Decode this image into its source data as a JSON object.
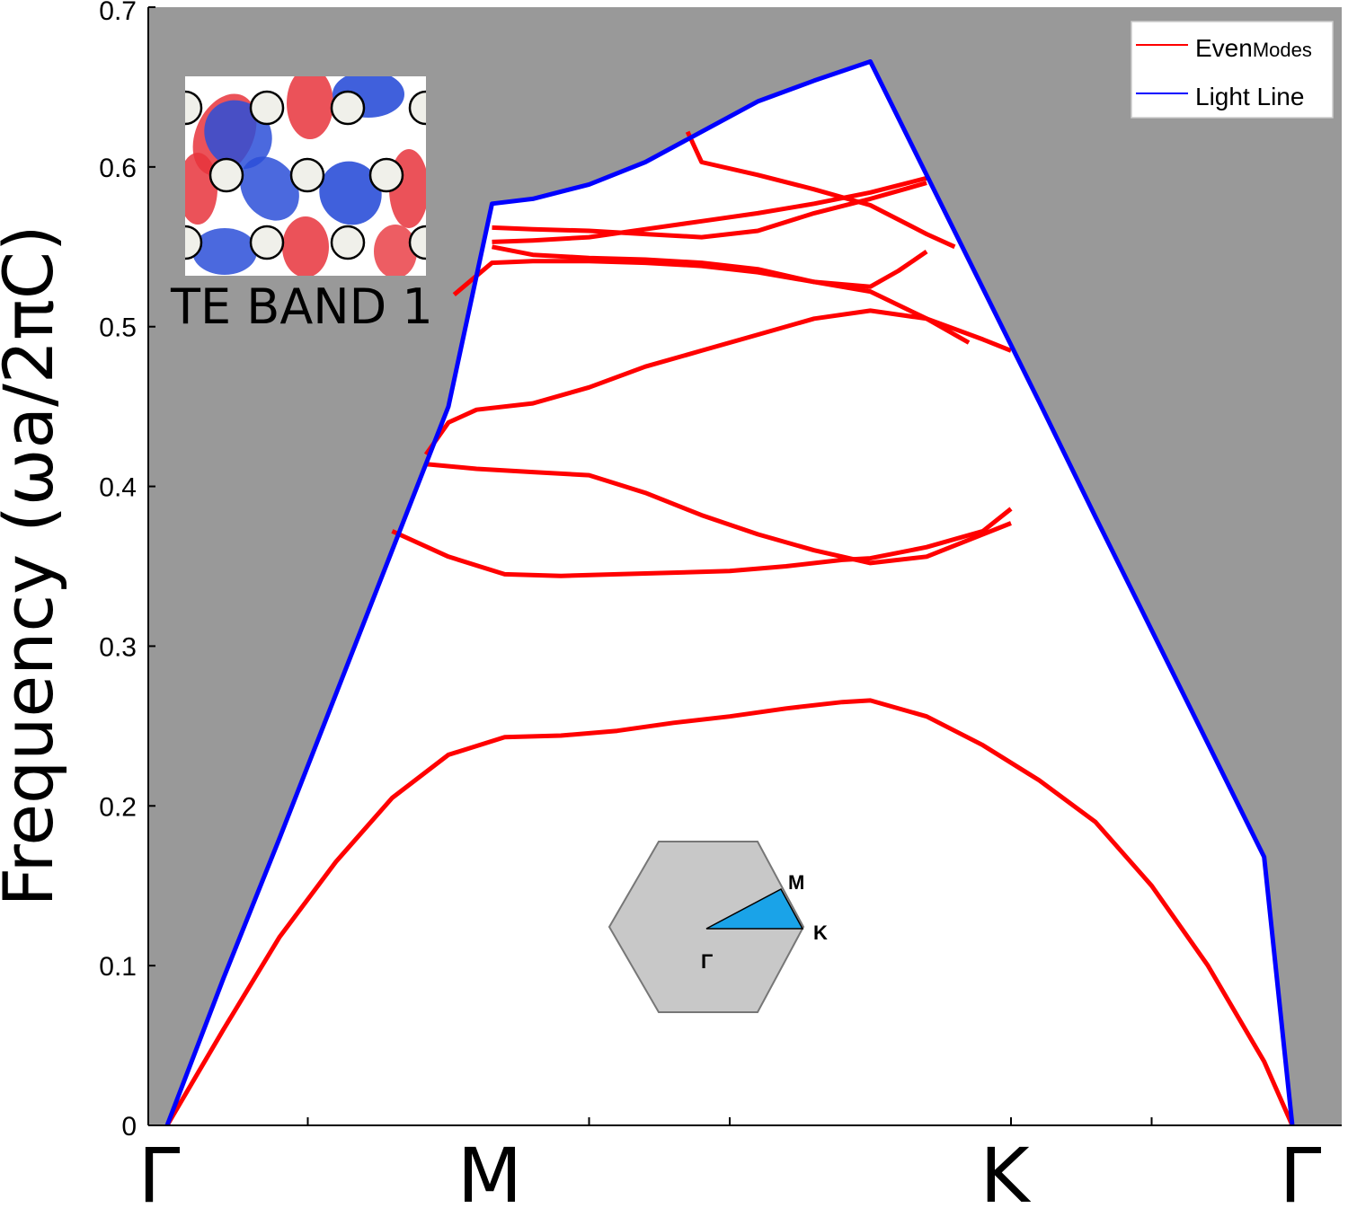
{
  "chart_data": {
    "type": "line",
    "ylabel": "Frequency (ωa/2πC)",
    "ylim": [
      0,
      0.7
    ],
    "yticks": [
      "0",
      "0.1",
      "0.2",
      "0.3",
      "0.4",
      "0.5",
      "0.6",
      "0.7"
    ],
    "x_symmetry_points": [
      "Γ",
      "M",
      "K",
      "Γ"
    ],
    "x_symmetry_positions": [
      0,
      1,
      2.5,
      4
    ],
    "xlim": [
      0,
      4
    ],
    "x_minor_ticks": [
      0.5,
      1.5,
      2.0,
      3.0,
      3.5
    ],
    "legend": {
      "position": "top-right",
      "entries": [
        {
          "prefix": "Even",
          "suffix": "Modes",
          "color": "#ff0000"
        },
        {
          "label": "Light Line",
          "color": "#0000ff"
        }
      ]
    },
    "colors": {
      "above_light_cone": "#999999",
      "plot_area": "#ffffff",
      "even_modes": "#ff0000",
      "light_line": "#0000ff"
    },
    "light_line": {
      "name": "Light Line",
      "x": [
        0.0,
        0.2,
        0.4,
        0.6,
        0.8,
        1.0,
        1.155,
        1.3,
        1.5,
        1.7,
        1.9,
        2.1,
        2.3,
        2.5,
        2.7,
        2.9,
        3.1,
        3.3,
        3.5,
        3.7,
        3.9,
        4.0
      ],
      "y": [
        0.0,
        0.092,
        0.18,
        0.27,
        0.36,
        0.45,
        0.577,
        0.58,
        0.589,
        0.603,
        0.622,
        0.641,
        0.654,
        0.666,
        0.595,
        0.524,
        0.453,
        0.381,
        0.31,
        0.239,
        0.168,
        0.0
      ]
    },
    "series": [
      {
        "name": "Even Modes",
        "bands": [
          {
            "x": [
              0.0,
              0.2,
              0.4,
              0.6,
              0.8,
              1.0,
              1.2,
              1.4,
              1.6,
              1.8,
              2.0,
              2.2,
              2.4,
              2.5,
              2.7,
              2.9,
              3.1,
              3.3,
              3.5,
              3.7,
              3.9,
              4.0
            ],
            "y": [
              0.0,
              0.06,
              0.118,
              0.165,
              0.205,
              0.232,
              0.243,
              0.244,
              0.247,
              0.252,
              0.256,
              0.261,
              0.265,
              0.266,
              0.256,
              0.238,
              0.216,
              0.19,
              0.15,
              0.1,
              0.04,
              0.0
            ]
          },
          {
            "x": [
              0.8,
              1.0,
              1.2,
              1.4,
              1.6,
              1.8,
              2.0,
              2.2,
              2.4,
              2.5,
              2.7,
              2.9,
              3.0
            ],
            "y": [
              0.372,
              0.356,
              0.345,
              0.344,
              0.345,
              0.346,
              0.347,
              0.35,
              0.354,
              0.355,
              0.362,
              0.372,
              0.386
            ]
          },
          {
            "x": [
              0.92,
              1.1,
              1.3,
              1.5,
              1.7,
              1.9,
              2.1,
              2.3,
              2.5,
              2.7,
              2.9,
              3.0
            ],
            "y": [
              0.414,
              0.411,
              0.409,
              0.407,
              0.396,
              0.382,
              0.37,
              0.36,
              0.352,
              0.356,
              0.37,
              0.377
            ]
          },
          {
            "x": [
              0.92,
              1.0,
              1.1,
              1.3,
              1.5,
              1.7,
              1.9,
              2.1,
              2.3,
              2.5,
              2.7,
              2.9,
              3.0
            ],
            "y": [
              0.42,
              0.44,
              0.448,
              0.452,
              0.462,
              0.475,
              0.485,
              0.495,
              0.505,
              0.51,
              0.505,
              0.492,
              0.485
            ]
          },
          {
            "x": [
              1.02,
              1.155,
              1.3,
              1.5,
              1.7,
              1.9,
              2.1,
              2.3,
              2.5,
              2.7,
              2.85
            ],
            "y": [
              0.52,
              0.54,
              0.541,
              0.541,
              0.54,
              0.538,
              0.534,
              0.528,
              0.522,
              0.505,
              0.49
            ]
          },
          {
            "x": [
              1.155,
              1.3,
              1.5,
              1.7,
              1.9,
              2.1,
              2.3,
              2.5,
              2.6,
              2.7
            ],
            "y": [
              0.55,
              0.545,
              0.543,
              0.542,
              0.54,
              0.536,
              0.528,
              0.525,
              0.535,
              0.547
            ]
          },
          {
            "x": [
              1.155,
              1.3,
              1.5,
              1.7,
              1.9,
              2.1,
              2.3,
              2.5,
              2.7
            ],
            "y": [
              0.562,
              0.561,
              0.56,
              0.558,
              0.556,
              0.56,
              0.571,
              0.58,
              0.59
            ]
          },
          {
            "x": [
              1.155,
              1.3,
              1.5,
              1.7,
              1.9,
              2.1,
              2.3,
              2.5,
              2.7
            ],
            "y": [
              0.553,
              0.554,
              0.556,
              0.561,
              0.566,
              0.571,
              0.577,
              0.584,
              0.593
            ]
          },
          {
            "x": [
              1.85,
              1.9,
              2.1,
              2.3,
              2.5,
              2.7,
              2.8
            ],
            "y": [
              0.622,
              0.603,
              0.595,
              0.586,
              0.576,
              0.558,
              0.55
            ]
          }
        ]
      }
    ],
    "grid": false,
    "insets": [
      {
        "kind": "field-map",
        "caption": "TE BAND 1",
        "position": "top-left"
      },
      {
        "kind": "brillouin-zone",
        "labels": [
          "M",
          "K",
          "Γ"
        ],
        "position": "bottom-center",
        "fill": "#c8c8c8",
        "wedge": "#1aa3e8"
      }
    ]
  }
}
